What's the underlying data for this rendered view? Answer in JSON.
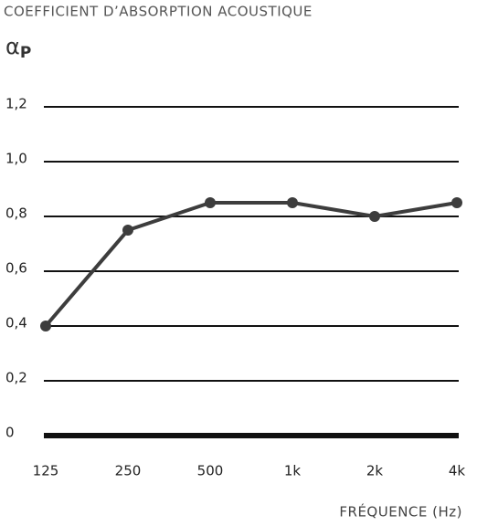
{
  "chart_data": {
    "type": "line",
    "title": "COEFFICIENT D’ABSORPTION ACOUSTIQUE",
    "y_label": "α",
    "y_label_sub": "P",
    "x_label": "FRÉQUENCE (Hz)",
    "categories": [
      "125",
      "250",
      "500",
      "1k",
      "2k",
      "4k"
    ],
    "values": [
      0.4,
      0.75,
      0.85,
      0.85,
      0.8,
      0.85
    ],
    "color": "#3d3d3d",
    "ylim": [
      0,
      1.2
    ],
    "yticks": [
      0,
      {
        "value": 0.2,
        "label": "0,2"
      },
      {
        "value": 0.4,
        "label": "0,4"
      },
      {
        "value": 0.6,
        "label": "0,6"
      },
      {
        "value": 0.8,
        "label": "0,8"
      },
      {
        "value": 1.0,
        "label": "1,0"
      },
      {
        "value": 1.2,
        "label": "1,2"
      }
    ],
    "grid": true
  }
}
